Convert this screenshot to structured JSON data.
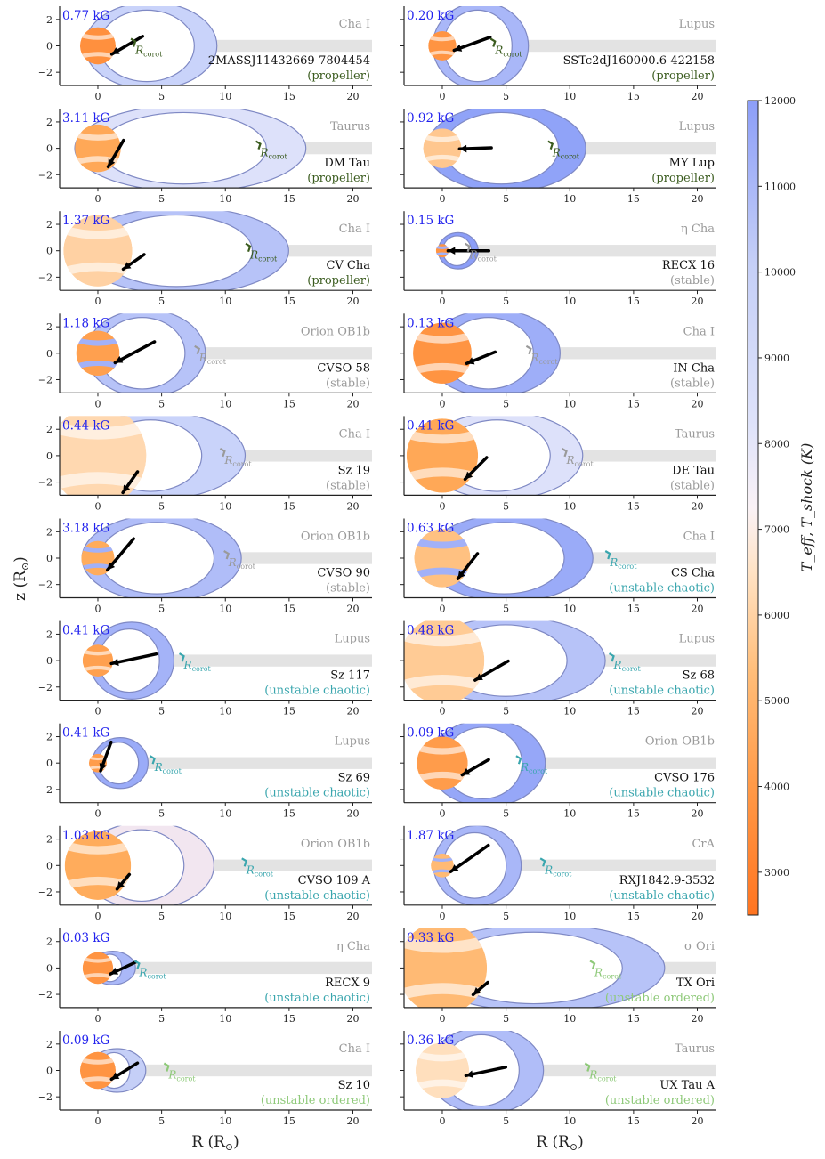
{
  "figure": {
    "ylabel_main": "z (R",
    "ylabel_sub": "⊙",
    "ylabel_end": ")",
    "xlabel_main": "R (R",
    "xlabel_sub": "⊙",
    "xlabel_end": ")",
    "colorbar_label": "T_eff, T_shock (K)",
    "rcorot_label": "R",
    "rcorot_sub": "corot"
  },
  "chart_data": {
    "type": "scatter",
    "xlim": [
      -3,
      21.5
    ],
    "ylim": [
      -3,
      3
    ],
    "xticks": [
      0,
      5,
      10,
      15,
      20
    ],
    "yticks": [
      -2,
      0,
      2
    ],
    "colorbar": {
      "min": 2500,
      "max": 12000,
      "ticks": [
        3000,
        4000,
        5000,
        6000,
        7000,
        8000,
        9000,
        10000,
        11000,
        12000
      ],
      "colors": [
        "#ff7420",
        "#ffb060",
        "#ffe2c4",
        "#faf2f6",
        "#c5cff7",
        "#8c9ef8"
      ]
    },
    "state_colors": {
      "propeller": "#3b5c1f",
      "stable": "#9a9a9a",
      "unstable chaotic": "#3aa6ae",
      "unstable ordered": "#8ec979"
    },
    "panels": [
      {
        "name": "2MASSJ11432669-7804454",
        "region": "Cha I",
        "state": "propeller",
        "bfield": "0.77 kG",
        "rstar": 1.4,
        "rcorot": 2.8,
        "rin": 8.3,
        "shock_color": "#c9d3fa",
        "teff": 3200,
        "spots": 1,
        "arrow_theta": -30,
        "arrow_len": 2.8
      },
      {
        "name": "SSTc2dJ160000.6-422158",
        "region": "Lupus",
        "state": "propeller",
        "bfield": "0.20 kG",
        "rstar": 1.1,
        "rcorot": 4.0,
        "rin": 6.0,
        "shock_color": "#a9b7f8",
        "teff": 3300,
        "spots": 1,
        "arrow_theta": -20,
        "arrow_len": 3.0
      },
      {
        "name": "DM Tau",
        "region": "Taurus",
        "state": "propeller",
        "bfield": "3.11 kG",
        "rstar": 1.8,
        "rcorot": 12.6,
        "rin": 14.5,
        "shock_color": "#dde1fa",
        "teff": 3800,
        "spots": 1,
        "arrow_theta": -60,
        "arrow_len": 2.4
      },
      {
        "name": "MY Lup",
        "region": "Lupus",
        "state": "propeller",
        "bfield": "0.92 kG",
        "rstar": 1.5,
        "rcorot": 8.5,
        "rin": 10.0,
        "shock_color": "#90a3f8",
        "teff": 4700,
        "spots": 1,
        "arrow_theta": -2,
        "arrow_len": 2.5
      },
      {
        "name": "CV Cha",
        "region": "Cha I",
        "state": "propeller",
        "bfield": "1.37 kG",
        "rstar": 2.7,
        "rcorot": 11.8,
        "rin": 13.3,
        "shock_color": "#b7c3f8",
        "teff": 5000,
        "spots": 1,
        "arrow_theta": -35,
        "arrow_len": 2.0
      },
      {
        "name": "RECX 16",
        "region": "η Cha",
        "state": "stable",
        "bfield": "0.15 kG",
        "rstar": 0.5,
        "rcorot": 2.0,
        "rin": 2.5,
        "shock_color": "#8c9ef8",
        "teff": 3300,
        "spots": 2,
        "arrow_theta": 0,
        "arrow_len": 3.2
      },
      {
        "name": "CVSO 58",
        "region": "Orion OB1b",
        "state": "stable",
        "bfield": "1.18 kG",
        "rstar": 1.7,
        "rcorot": 7.8,
        "rin": 7.5,
        "shock_color": "#b7c3f8",
        "teff": 3600,
        "spots": 2,
        "arrow_theta": -28,
        "arrow_len": 3.5
      },
      {
        "name": "IN Cha",
        "region": "Cha I",
        "state": "stable",
        "bfield": "0.13 kG",
        "rstar": 2.3,
        "rcorot": 6.8,
        "rin": 8.0,
        "shock_color": "#9eaef8",
        "teff": 3300,
        "spots": 1,
        "arrow_theta": -22,
        "arrow_len": 2.4
      },
      {
        "name": "Sz 19",
        "region": "Cha I",
        "state": "stable",
        "bfield": "0.44 kG",
        "rstar": 3.8,
        "rcorot": 9.8,
        "rin": 9.5,
        "shock_color": "#c9d3fa",
        "teff": 5200,
        "spots": 1,
        "arrow_theta": -55,
        "arrow_len": 2.0
      },
      {
        "name": "DE Tau",
        "region": "Taurus",
        "state": "stable",
        "bfield": "0.41 kG",
        "rstar": 2.8,
        "rcorot": 9.6,
        "rin": 9.5,
        "shock_color": "#dde1fa",
        "teff": 3800,
        "spots": 1,
        "arrow_theta": -45,
        "arrow_len": 2.4
      },
      {
        "name": "CVSO 90",
        "region": "Orion OB1b",
        "state": "stable",
        "bfield": "3.18 kG",
        "rstar": 1.3,
        "rcorot": 10.1,
        "rin": 10.0,
        "shock_color": "#b0bdf8",
        "teff": 3900,
        "spots": 2,
        "arrow_theta": -50,
        "arrow_len": 3.2
      },
      {
        "name": "CS Cha",
        "region": "Cha I",
        "state": "unstable chaotic",
        "bfield": "0.63 kG",
        "rstar": 2.2,
        "rcorot": 13.0,
        "rin": 10.5,
        "shock_color": "#9aabf8",
        "teff": 4500,
        "spots": 2,
        "arrow_theta": -52,
        "arrow_len": 2.5
      },
      {
        "name": "Sz 117",
        "region": "Lupus",
        "state": "unstable chaotic",
        "bfield": "0.41 kG",
        "rstar": 1.2,
        "rcorot": 6.6,
        "rin": 5.3,
        "shock_color": "#a4b3f8",
        "teff": 3600,
        "spots": 1,
        "arrow_theta": -12,
        "arrow_len": 3.6
      },
      {
        "name": "Sz 68",
        "region": "Lupus",
        "state": "unstable chaotic",
        "bfield": "0.48 kG",
        "rstar": 3.3,
        "rcorot": 13.3,
        "rin": 11.0,
        "shock_color": "#b7c3f8",
        "teff": 4800,
        "spots": 1,
        "arrow_theta": -30,
        "arrow_len": 3.0
      },
      {
        "name": "Sz 69",
        "region": "Lupus",
        "state": "unstable chaotic",
        "bfield": "0.41 kG",
        "rstar": 0.7,
        "rcorot": 4.3,
        "rin": 3.5,
        "shock_color": "#9aabf8",
        "teff": 3500,
        "spots": 1,
        "arrow_theta": -70,
        "arrow_len": 2.4
      },
      {
        "name": "CVSO 176",
        "region": "Orion OB1b",
        "state": "unstable chaotic",
        "bfield": "0.09 kG",
        "rstar": 2.0,
        "rcorot": 6.0,
        "rin": 7.0,
        "shock_color": "#96a7f8",
        "teff": 3500,
        "spots": 1,
        "arrow_theta": -30,
        "arrow_len": 2.4
      },
      {
        "name": "CVSO 109 A",
        "region": "Orion OB1b",
        "state": "unstable chaotic",
        "bfield": "1.03 kG",
        "rstar": 2.6,
        "rcorot": 11.5,
        "rin": 7.7,
        "shock_color": "#f2e6f0",
        "teff": 3900,
        "spots": 1,
        "arrow_theta": -50,
        "arrow_len": 1.5
      },
      {
        "name": "RXJ1842.9-3532",
        "region": "CrA",
        "state": "unstable chaotic",
        "bfield": "1.87 kG",
        "rstar": 0.9,
        "rcorot": 7.9,
        "rin": 5.5,
        "shock_color": "#a9b7f8",
        "teff": 4300,
        "spots": 2,
        "arrow_theta": -35,
        "arrow_len": 3.6
      },
      {
        "name": "RECX 9",
        "region": "η Cha",
        "state": "unstable chaotic",
        "bfield": "0.03 kG",
        "rstar": 1.2,
        "rcorot": 3.1,
        "rin": 2.3,
        "shock_color": "#aab8f8",
        "teff": 3300,
        "spots": 1,
        "arrow_theta": -25,
        "arrow_len": 2.2
      },
      {
        "name": "TX Ori",
        "region": "σ Ori",
        "state": "unstable ordered",
        "bfield": "0.33 kG",
        "rstar": 3.5,
        "rcorot": 11.8,
        "rin": 15.5,
        "shock_color": "#b7c3f8",
        "teff": 4300,
        "spots": 1,
        "arrow_theta": -40,
        "arrow_len": 1.5
      },
      {
        "name": "Sz 10",
        "region": "Cha I",
        "state": "unstable ordered",
        "bfield": "0.09 kG",
        "rstar": 1.4,
        "rcorot": 5.4,
        "rin": 3.0,
        "shock_color": "#c5cff7",
        "teff": 3300,
        "spots": 1,
        "arrow_theta": -32,
        "arrow_len": 2.4
      },
      {
        "name": "UX Tau A",
        "region": "Taurus",
        "state": "unstable ordered",
        "bfield": "0.36 kG",
        "rstar": 2.1,
        "rcorot": 11.4,
        "rin": 6.8,
        "shock_color": "#b0bdf8",
        "teff": 5400,
        "spots": 1,
        "arrow_theta": -12,
        "arrow_len": 3.2
      }
    ]
  }
}
